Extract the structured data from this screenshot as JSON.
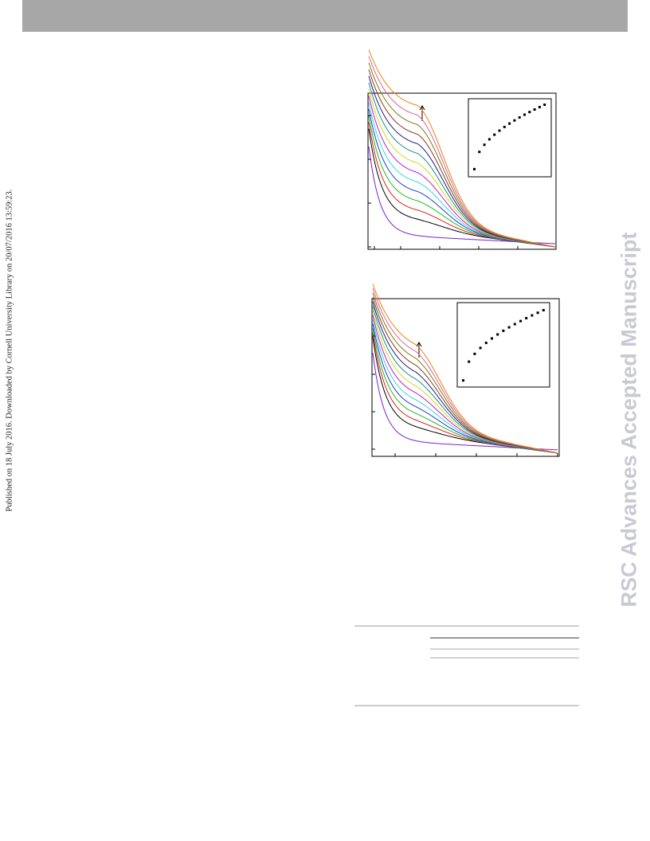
{
  "sidebar_note": "Published on 18 July 2016. Downloaded by Cornell University Library on 20/07/2016 13:59:23.",
  "watermark": "RSC Advances Accepted Manuscript"
}
